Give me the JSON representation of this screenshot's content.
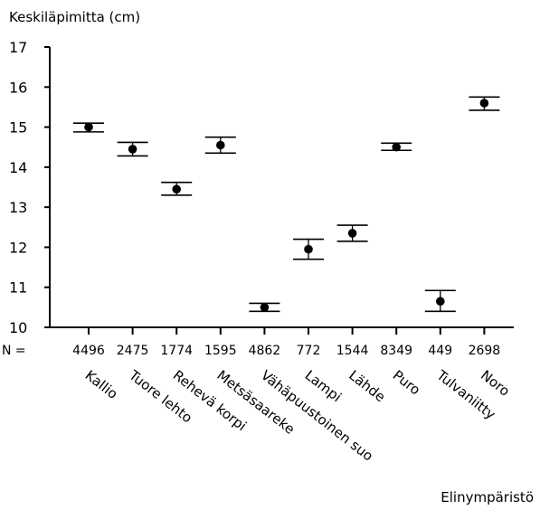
{
  "chart_data": {
    "type": "scatter",
    "title": "",
    "ylabel": "Keskiläpimitta (cm)",
    "xlabel": "Elinympäristö",
    "ylim": [
      10,
      17
    ],
    "yticks": [
      10,
      11,
      12,
      13,
      14,
      15,
      16,
      17
    ],
    "n_prefix": "N =",
    "categories": [
      "Kallio",
      "Tuore lehto",
      "Rehevä korpi",
      "Metsäsaareke",
      "Vähäpuustoinen suo",
      "Lampi",
      "Lähde",
      "Puro",
      "Tulvaniitty",
      "Noro"
    ],
    "n": [
      "4496",
      "2475",
      "1774",
      "1595",
      "4862",
      "772",
      "1544",
      "8349",
      "449",
      "2698"
    ],
    "mean": [
      15.0,
      14.45,
      13.45,
      14.55,
      10.5,
      11.95,
      12.35,
      14.5,
      10.65,
      15.6
    ],
    "lower": [
      14.88,
      14.28,
      13.3,
      14.35,
      10.4,
      11.7,
      12.15,
      14.42,
      10.4,
      15.42
    ],
    "upper": [
      15.1,
      14.62,
      13.62,
      14.75,
      10.6,
      12.2,
      12.55,
      14.6,
      10.92,
      15.75
    ]
  }
}
